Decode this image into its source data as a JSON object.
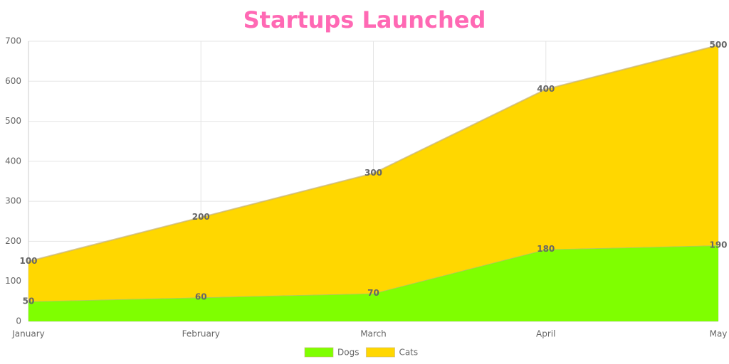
{
  "chart_data": {
    "type": "area",
    "stacked": true,
    "title": "Startups Launched",
    "categories": [
      "January",
      "February",
      "March",
      "April",
      "May"
    ],
    "series": [
      {
        "name": "Dogs",
        "color": "#7fff00",
        "values": [
          50,
          60,
          70,
          180,
          190
        ]
      },
      {
        "name": "Cats",
        "color": "#ffd700",
        "values": [
          100,
          200,
          300,
          400,
          500
        ]
      }
    ],
    "ylim": [
      0,
      700
    ],
    "yticks": [
      0,
      100,
      200,
      300,
      400,
      500,
      600,
      700
    ],
    "grid": true,
    "legend": "bottom",
    "title_color": "#ff69b4"
  }
}
